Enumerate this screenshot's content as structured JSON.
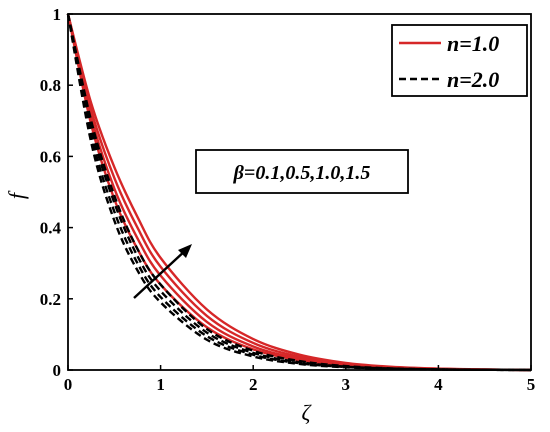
{
  "chart_data": {
    "type": "line",
    "xlabel": "ζ",
    "ylabel": "f",
    "xlim": [
      0,
      5
    ],
    "ylim": [
      0,
      1
    ],
    "xticks": [
      "0",
      "1",
      "2",
      "3",
      "4",
      "5"
    ],
    "yticks": [
      "0",
      "0.2",
      "0.4",
      "0.6",
      "0.8",
      "1"
    ],
    "legend": {
      "placement": "top-right",
      "entries": [
        {
          "label": "n=1.0",
          "color": "#d62728",
          "style": "solid"
        },
        {
          "label": "n=2.0",
          "color": "#000000",
          "style": "dashed"
        }
      ]
    },
    "annotation": {
      "text": "β=0.1,0.5,1.0,1.5",
      "arrow": "increasing β"
    },
    "x": [
      0,
      0.25,
      0.5,
      0.75,
      1,
      1.5,
      2,
      2.5,
      3,
      3.5,
      4,
      4.5,
      5
    ],
    "series": [
      {
        "group": "n=1.0",
        "beta": "0.1",
        "color": "#d62728",
        "style": "solid",
        "values": [
          1,
          0.69,
          0.48,
          0.34,
          0.24,
          0.12,
          0.058,
          0.028,
          0.013,
          0.006,
          0.0025,
          0.001,
          0
        ]
      },
      {
        "group": "n=1.0",
        "beta": "0.5",
        "color": "#d62728",
        "style": "solid",
        "values": [
          1,
          0.71,
          0.51,
          0.37,
          0.265,
          0.135,
          0.066,
          0.032,
          0.015,
          0.007,
          0.003,
          0.0012,
          0
        ]
      },
      {
        "group": "n=1.0",
        "beta": "1.0",
        "color": "#d62728",
        "style": "solid",
        "values": [
          1,
          0.73,
          0.54,
          0.4,
          0.29,
          0.152,
          0.076,
          0.037,
          0.017,
          0.008,
          0.0035,
          0.0014,
          0
        ]
      },
      {
        "group": "n=1.0",
        "beta": "1.5",
        "color": "#d62728",
        "style": "solid",
        "values": [
          1,
          0.75,
          0.57,
          0.43,
          0.315,
          0.17,
          0.087,
          0.043,
          0.02,
          0.009,
          0.004,
          0.0016,
          0
        ]
      },
      {
        "group": "n=2.0",
        "beta": "0.1",
        "color": "#000000",
        "style": "dashed",
        "values": [
          1,
          0.64,
          0.42,
          0.28,
          0.19,
          0.085,
          0.038,
          0.017,
          0.0075,
          0.003,
          0.0012,
          0.0005,
          0
        ]
      },
      {
        "group": "n=2.0",
        "beta": "0.5",
        "color": "#000000",
        "style": "dashed",
        "values": [
          1,
          0.66,
          0.445,
          0.3,
          0.205,
          0.095,
          0.043,
          0.019,
          0.0085,
          0.0035,
          0.0014,
          0.0006,
          0
        ]
      },
      {
        "group": "n=2.0",
        "beta": "1.0",
        "color": "#000000",
        "style": "dashed",
        "values": [
          1,
          0.68,
          0.47,
          0.32,
          0.222,
          0.105,
          0.048,
          0.022,
          0.0095,
          0.004,
          0.0016,
          0.0007,
          0
        ]
      },
      {
        "group": "n=2.0",
        "beta": "1.5",
        "color": "#000000",
        "style": "dashed",
        "values": [
          1,
          0.7,
          0.49,
          0.34,
          0.24,
          0.115,
          0.054,
          0.025,
          0.011,
          0.0045,
          0.0018,
          0.0008,
          0
        ]
      }
    ]
  }
}
